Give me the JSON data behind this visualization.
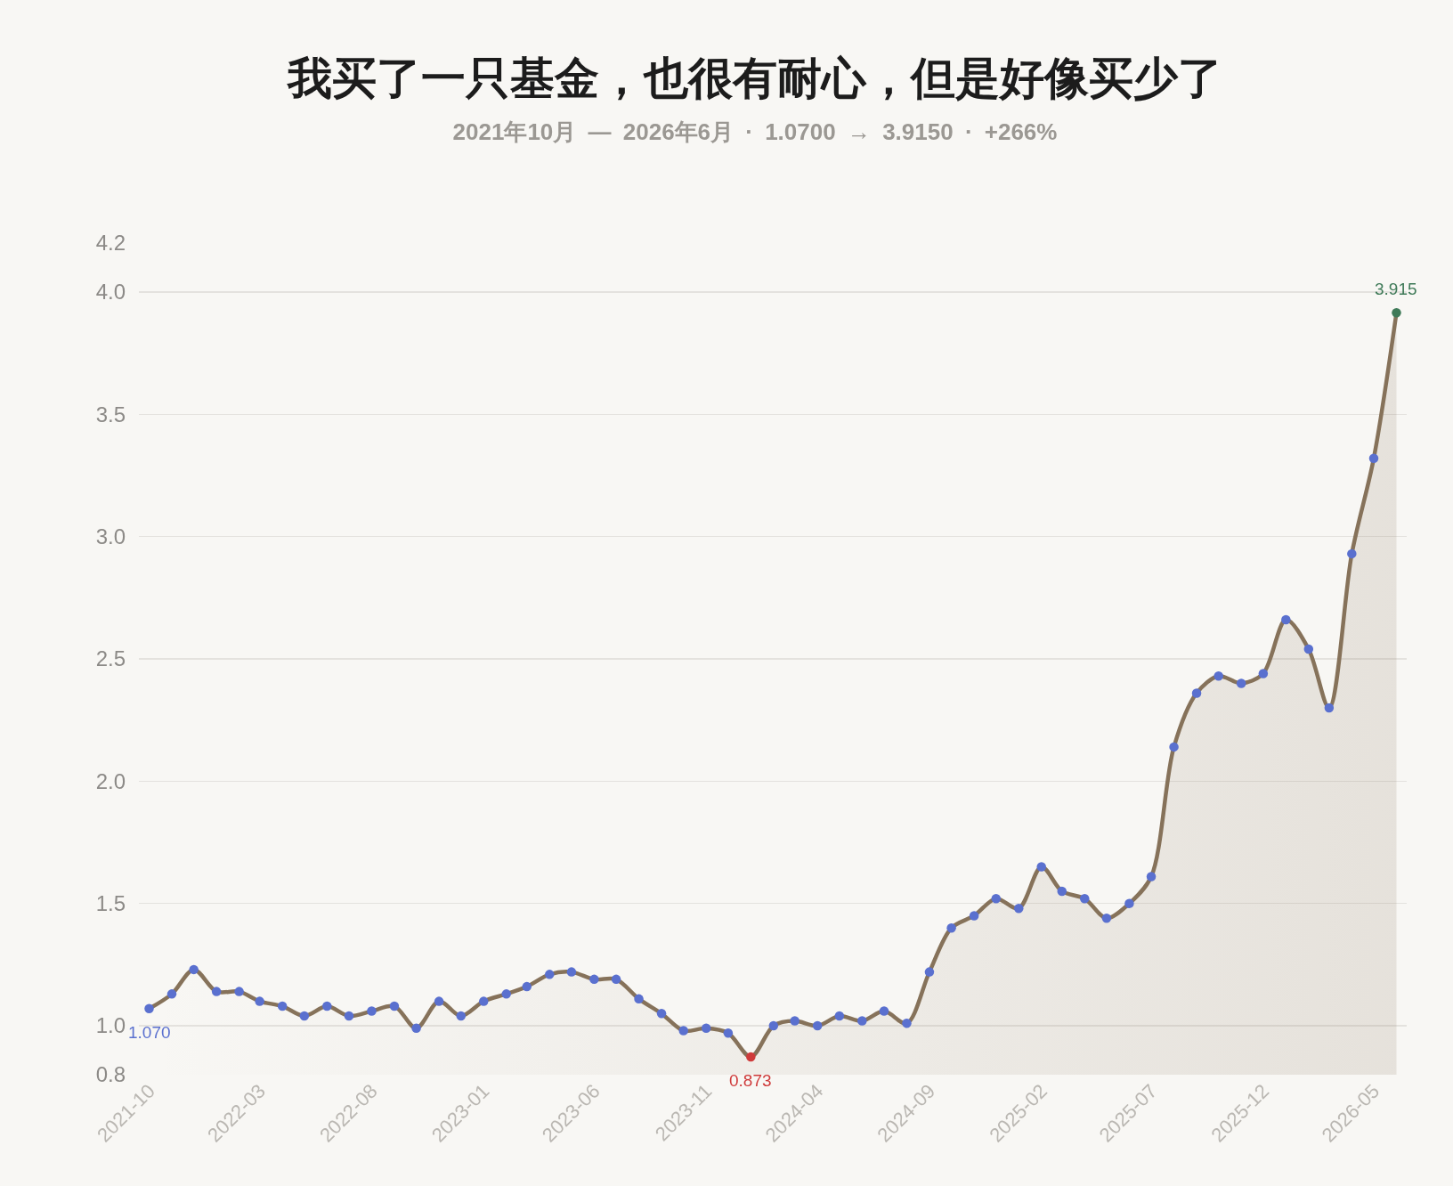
{
  "chart_data": {
    "type": "area",
    "title": "我买了一只基金，也很有耐心，但是好像买少了",
    "subtitle": "2021年10月 — 2026年6月 · 1.0700 → 3.9150 · +266%",
    "x": [
      "2021-10",
      "2021-11",
      "2021-12",
      "2022-01",
      "2022-02",
      "2022-03",
      "2022-04",
      "2022-05",
      "2022-06",
      "2022-07",
      "2022-08",
      "2022-09",
      "2022-10",
      "2022-11",
      "2022-12",
      "2023-01",
      "2023-02",
      "2023-03",
      "2023-04",
      "2023-05",
      "2023-06",
      "2023-07",
      "2023-08",
      "2023-09",
      "2023-10",
      "2023-11",
      "2023-12",
      "2024-01",
      "2024-02",
      "2024-03",
      "2024-04",
      "2024-05",
      "2024-06",
      "2024-07",
      "2024-08",
      "2024-09",
      "2024-10",
      "2024-11",
      "2024-12",
      "2025-01",
      "2025-02",
      "2025-03",
      "2025-04",
      "2025-05",
      "2025-06",
      "2025-07",
      "2025-08",
      "2025-09",
      "2025-10",
      "2025-11",
      "2025-12",
      "2026-01",
      "2026-02",
      "2026-03",
      "2026-04",
      "2026-05",
      "2026-06"
    ],
    "series": [
      {
        "color": "#86725a",
        "colors": [
          "#5a70cf",
          "#5a70cf",
          "#5a70cf",
          "#5a70cf",
          "#5a70cf",
          "#5a70cf",
          "#5a70cf",
          "#5a70cf",
          "#5a70cf",
          "#5a70cf",
          "#5a70cf",
          "#5a70cf",
          "#5a70cf",
          "#5a70cf",
          "#5a70cf",
          "#5a70cf",
          "#5a70cf",
          "#5a70cf",
          "#5a70cf",
          "#5a70cf",
          "#5a70cf",
          "#5a70cf",
          "#5a70cf",
          "#5a70cf",
          "#5a70cf",
          "#5a70cf",
          "#5a70cf",
          "#cf3b3b",
          "#5a70cf",
          "#5a70cf",
          "#5a70cf",
          "#5a70cf",
          "#5a70cf",
          "#5a70cf",
          "#5a70cf",
          "#5a70cf",
          "#5a70cf",
          "#5a70cf",
          "#5a70cf",
          "#5a70cf",
          "#5a70cf",
          "#5a70cf",
          "#5a70cf",
          "#5a70cf",
          "#5a70cf",
          "#5a70cf",
          "#5a70cf",
          "#5a70cf",
          "#5a70cf",
          "#5a70cf",
          "#5a70cf",
          "#5a70cf",
          "#5a70cf",
          "#5a70cf",
          "#5a70cf",
          "#5a70cf",
          "#3f7a58"
        ],
        "values": [
          1.07,
          1.13,
          1.23,
          1.14,
          1.14,
          1.1,
          1.08,
          1.04,
          1.08,
          1.04,
          1.06,
          1.08,
          0.99,
          1.1,
          1.04,
          1.1,
          1.13,
          1.16,
          1.21,
          1.22,
          1.19,
          1.19,
          1.11,
          1.05,
          0.98,
          0.99,
          0.97,
          0.873,
          1.0,
          1.02,
          1.0,
          1.04,
          1.02,
          1.06,
          1.01,
          1.22,
          1.4,
          1.45,
          1.52,
          1.48,
          1.65,
          1.55,
          1.52,
          1.44,
          1.5,
          1.61,
          2.14,
          2.36,
          2.43,
          2.4,
          2.44,
          2.66,
          2.54,
          2.3,
          2.93,
          3.32,
          3.915
        ]
      }
    ],
    "annotations": [
      {
        "text": "1.070",
        "x": "2021-10",
        "y": 1.07
      },
      {
        "text": "0.873",
        "x": "2024-01",
        "y": 0.873
      },
      {
        "text": "3.915",
        "x": "2026-06",
        "y": 3.915
      }
    ],
    "xlim": [
      "2021-09-17",
      "2026-06-15"
    ],
    "xticks": [
      "2021-10",
      "2022-03",
      "2022-08",
      "2023-01",
      "2023-06",
      "2023-11",
      "2024-04",
      "2024-09",
      "2025-02",
      "2025-07",
      "2025-12",
      "2026-05"
    ],
    "ylim": [
      0.8,
      4.2
    ],
    "yticks": [
      0.8,
      {
        "value": 1,
        "label": "1.0"
      },
      1.5,
      {
        "value": 2,
        "label": "2.0"
      },
      2.5,
      {
        "value": 3,
        "label": "3.0"
      },
      3.5,
      {
        "value": 4,
        "label": "4.0"
      },
      4.2
    ],
    "grid": "y",
    "marker": "circle",
    "line_style": "solid"
  }
}
